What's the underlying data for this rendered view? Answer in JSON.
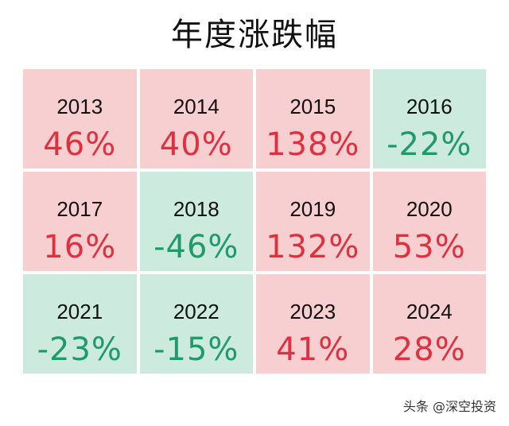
{
  "title": "年度涨跌幅",
  "cells": [
    {
      "year": "2013",
      "change": "46%",
      "direction": "up"
    },
    {
      "year": "2014",
      "change": "40%",
      "direction": "up"
    },
    {
      "year": "2015",
      "change": "138%",
      "direction": "up"
    },
    {
      "year": "2016",
      "change": "-22%",
      "direction": "down"
    },
    {
      "year": "2017",
      "change": "16%",
      "direction": "up"
    },
    {
      "year": "2018",
      "change": "-46%",
      "direction": "down"
    },
    {
      "year": "2019",
      "change": "132%",
      "direction": "up"
    },
    {
      "year": "2020",
      "change": "53%",
      "direction": "up"
    },
    {
      "year": "2021",
      "change": "-23%",
      "direction": "down"
    },
    {
      "year": "2022",
      "change": "-15%",
      "direction": "down"
    },
    {
      "year": "2023",
      "change": "41%",
      "direction": "up"
    },
    {
      "year": "2024",
      "change": "28%",
      "direction": "up"
    }
  ],
  "colors": {
    "up_bg": "#f8cfd0",
    "down_bg": "#cdeadf",
    "up_text": "#e0303f",
    "down_text": "#1f9a6b"
  },
  "watermark": "头条 @深空投资"
}
